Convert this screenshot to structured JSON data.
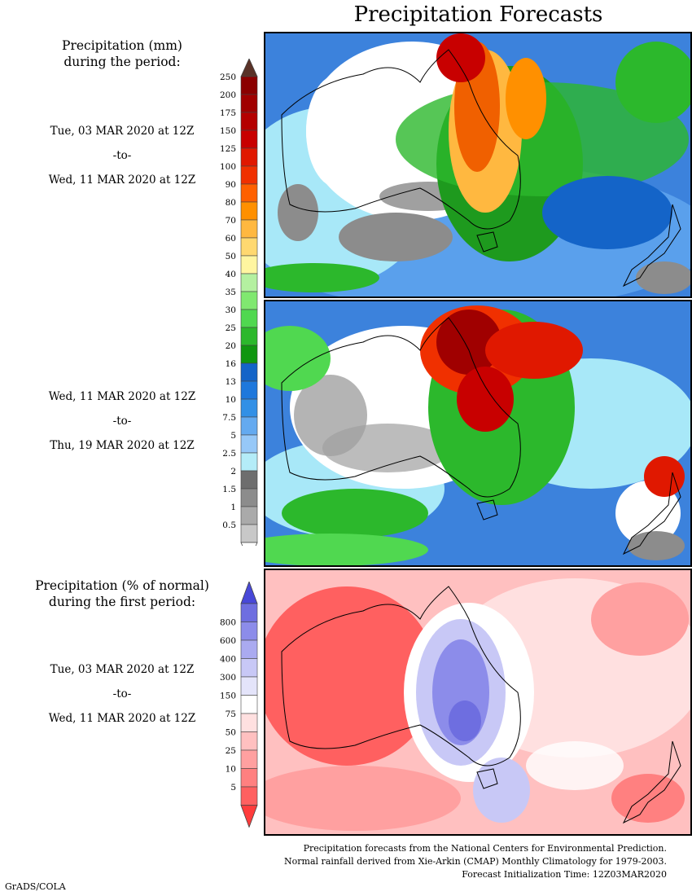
{
  "title": "Precipitation Forecasts",
  "panel1": {
    "heading_line1": "Precipitation (mm)",
    "heading_line2": "during the period:",
    "start": "Tue, 03 MAR 2020 at 12Z",
    "to": "-to-",
    "end": "Wed, 11 MAR 2020 at 12Z"
  },
  "panel2": {
    "start": "Wed, 11 MAR 2020 at 12Z",
    "to": "-to-",
    "end": "Thu, 19 MAR 2020 at 12Z"
  },
  "panel3": {
    "heading_line1": "Precipitation (% of normal)",
    "heading_line2": "during the first period:",
    "start": "Tue, 03 MAR 2020 at 12Z",
    "to": "-to-",
    "end": "Wed, 11 MAR 2020 at 12Z"
  },
  "precip_colorbar": {
    "labels": [
      "250",
      "200",
      "175",
      "150",
      "125",
      "100",
      "90",
      "80",
      "70",
      "60",
      "50",
      "40",
      "35",
      "30",
      "25",
      "20",
      "16",
      "13",
      "10",
      "7.5",
      "5",
      "2.5",
      "2",
      "1.5",
      "1",
      "0.5"
    ],
    "colors": [
      "#8b0000",
      "#a00000",
      "#b40000",
      "#c80000",
      "#e01800",
      "#f03000",
      "#ff6000",
      "#ff9000",
      "#ffb840",
      "#ffd870",
      "#fff5a0",
      "#b4f0a0",
      "#80e870",
      "#50d850",
      "#2cb82c",
      "#109610",
      "#1464c8",
      "#1e78dc",
      "#3290e6",
      "#64aaf0",
      "#96c8f8",
      "#b4ecf8",
      "#6e6e6e",
      "#8c8c8c",
      "#aaaaaa",
      "#c8c8c8"
    ],
    "top_arrow_color": "#5a3228",
    "bottom_arrow_color": "#ffffff"
  },
  "percent_colorbar": {
    "labels": [
      "800",
      "600",
      "400",
      "300",
      "150",
      "75",
      "50",
      "25",
      "10",
      "5"
    ],
    "colors": [
      "#6e6ee0",
      "#8c8cea",
      "#aaaaf0",
      "#c8c8f6",
      "#e4e4fa",
      "#ffffff",
      "#ffe0e0",
      "#ffc0c0",
      "#ffa0a0",
      "#ff8080",
      "#ff6060"
    ],
    "top_arrow_color": "#4848d8",
    "bottom_arrow_color": "#ff3c3c"
  },
  "footnotes": {
    "line1": "Precipitation forecasts from the National Centers for Environmental Prediction.",
    "line2": "Normal rainfall derived from Xie-Arkin (CMAP) Monthly Climatology for 1979-2003.",
    "line3": "Forecast Initialization Time: 12Z03MAR2020"
  },
  "credit": "GrADS/COLA"
}
